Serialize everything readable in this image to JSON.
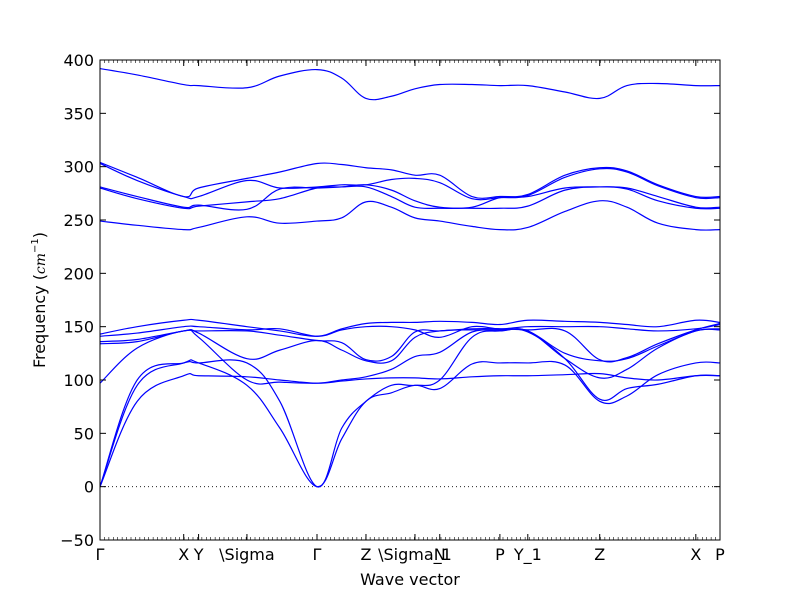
{
  "chart_data": {
    "type": "line",
    "title": "",
    "xlabel": "Wave vector",
    "ylabel": "Frequency ($cm^{-1}$)",
    "ylim": [
      -50,
      400
    ],
    "yticks": [
      -50,
      0,
      50,
      100,
      150,
      200,
      250,
      300,
      350,
      400
    ],
    "xlim": [
      0,
      1
    ],
    "xticks": [
      {
        "label": "Γ",
        "x": 0.0
      },
      {
        "label": "X",
        "x": 0.135
      },
      {
        "label": "Y",
        "x": 0.159
      },
      {
        "label": "\\Sigma",
        "x": 0.237
      },
      {
        "label": "Γ",
        "x": 0.35
      },
      {
        "label": "Z",
        "x": 0.429
      },
      {
        "label": "\\Sigma_1",
        "x": 0.508
      },
      {
        "label": "N",
        "x": 0.548
      },
      {
        "label": "P",
        "x": 0.645
      },
      {
        "label": "Y_1",
        "x": 0.69
      },
      {
        "label": "Z",
        "x": 0.806
      },
      {
        "label": "X",
        "x": 0.961
      },
      {
        "label": "P",
        "x": 1.0
      }
    ],
    "zero_line": {
      "y": 0,
      "style": "dotted"
    },
    "line_color": "#0000ff",
    "series": [
      {
        "x": [
          0,
          0.06,
          0.135,
          0.159,
          0.237,
          0.29,
          0.35,
          0.39,
          0.429,
          0.47,
          0.508,
          0.548,
          0.6,
          0.645,
          0.69,
          0.75,
          0.806,
          0.85,
          0.9,
          0.961,
          1.0
        ],
        "values": [
          0,
          80,
          104,
          104,
          103,
          100,
          97,
          99,
          101,
          102,
          102,
          101,
          103,
          104,
          104,
          105,
          106,
          102,
          100,
          104,
          104
        ]
      },
      {
        "x": [
          0,
          0.06,
          0.135,
          0.159,
          0.237,
          0.29,
          0.35,
          0.39,
          0.429,
          0.47,
          0.508,
          0.548,
          0.6,
          0.645,
          0.69,
          0.75,
          0.806,
          0.85,
          0.9,
          0.961,
          1.0
        ],
        "values": [
          0,
          95,
          116,
          116,
          95,
          55,
          0,
          45,
          80,
          88,
          95,
          92,
          115,
          116,
          116,
          114,
          80,
          85,
          105,
          116,
          116
        ]
      },
      {
        "x": [
          0,
          0.06,
          0.135,
          0.159,
          0.237,
          0.29,
          0.35,
          0.39,
          0.429,
          0.47,
          0.508,
          0.548,
          0.6,
          0.645,
          0.69,
          0.75,
          0.806,
          0.85,
          0.9,
          0.961,
          1.0
        ],
        "values": [
          0,
          100,
          116,
          116,
          116,
          80,
          0,
          55,
          80,
          95,
          95,
          100,
          140,
          146,
          145,
          120,
          82,
          92,
          96,
          104,
          104
        ]
      },
      {
        "x": [
          0,
          0.06,
          0.135,
          0.159,
          0.237,
          0.29,
          0.35,
          0.39,
          0.429,
          0.47,
          0.508,
          0.548,
          0.6,
          0.645,
          0.69,
          0.75,
          0.806,
          0.85,
          0.9,
          0.961,
          1.0
        ],
        "values": [
          97,
          130,
          146,
          140,
          100,
          98,
          97,
          100,
          103,
          110,
          122,
          126,
          145,
          146,
          146,
          120,
          102,
          110,
          130,
          146,
          147
        ]
      },
      {
        "x": [
          0,
          0.06,
          0.135,
          0.159,
          0.237,
          0.29,
          0.35,
          0.39,
          0.429,
          0.47,
          0.508,
          0.548,
          0.6,
          0.645,
          0.69,
          0.75,
          0.806,
          0.85,
          0.9,
          0.961,
          1.0
        ],
        "values": [
          134,
          136,
          146,
          144,
          120,
          128,
          137,
          128,
          118,
          118,
          140,
          146,
          147,
          147,
          146,
          125,
          118,
          120,
          132,
          146,
          148
        ]
      },
      {
        "x": [
          0,
          0.06,
          0.135,
          0.159,
          0.237,
          0.29,
          0.35,
          0.39,
          0.429,
          0.47,
          0.508,
          0.548,
          0.6,
          0.645,
          0.69,
          0.75,
          0.806,
          0.85,
          0.9,
          0.961,
          1.0
        ],
        "values": [
          136,
          138,
          146,
          146,
          146,
          142,
          137,
          135,
          119,
          122,
          145,
          146,
          148,
          148,
          147,
          146,
          119,
          121,
          134,
          147,
          153
        ]
      },
      {
        "x": [
          0,
          0.06,
          0.135,
          0.159,
          0.237,
          0.29,
          0.35,
          0.39,
          0.429,
          0.47,
          0.508,
          0.548,
          0.6,
          0.645,
          0.69,
          0.75,
          0.806,
          0.85,
          0.9,
          0.961,
          1.0
        ],
        "values": [
          141,
          144,
          150,
          150,
          147,
          148,
          141,
          147,
          150,
          150,
          147,
          140,
          150,
          148,
          150,
          150,
          150,
          148,
          146,
          148,
          152
        ]
      },
      {
        "x": [
          0,
          0.06,
          0.135,
          0.159,
          0.237,
          0.29,
          0.35,
          0.39,
          0.429,
          0.47,
          0.508,
          0.548,
          0.6,
          0.645,
          0.69,
          0.75,
          0.806,
          0.85,
          0.9,
          0.961,
          1.0
        ],
        "values": [
          143,
          150,
          156,
          156,
          150,
          146,
          141,
          148,
          153,
          154,
          154,
          155,
          154,
          152,
          156,
          155,
          154,
          152,
          150,
          156,
          154
        ]
      },
      {
        "x": [
          0,
          0.06,
          0.135,
          0.159,
          0.237,
          0.29,
          0.35,
          0.39,
          0.429,
          0.47,
          0.508,
          0.548,
          0.6,
          0.645,
          0.69,
          0.75,
          0.806,
          0.85,
          0.9,
          0.961,
          1.0
        ],
        "values": [
          249,
          245,
          241,
          243,
          253,
          247,
          249,
          252,
          267,
          262,
          252,
          249,
          244,
          241,
          243,
          258,
          268,
          262,
          247,
          241,
          241
        ]
      },
      {
        "x": [
          0,
          0.06,
          0.135,
          0.159,
          0.237,
          0.29,
          0.35,
          0.39,
          0.429,
          0.47,
          0.508,
          0.548,
          0.6,
          0.645,
          0.69,
          0.75,
          0.806,
          0.85,
          0.9,
          0.961,
          1.0
        ],
        "values": [
          280,
          270,
          261,
          263,
          267,
          270,
          280,
          281,
          281,
          272,
          262,
          261,
          261,
          261,
          263,
          278,
          281,
          279,
          268,
          261,
          261
        ]
      },
      {
        "x": [
          0,
          0.06,
          0.135,
          0.159,
          0.237,
          0.29,
          0.35,
          0.39,
          0.429,
          0.47,
          0.508,
          0.548,
          0.6,
          0.645,
          0.69,
          0.75,
          0.806,
          0.85,
          0.9,
          0.961,
          1.0
        ],
        "values": [
          281,
          272,
          262,
          264,
          260,
          279,
          280,
          281,
          283,
          278,
          268,
          262,
          262,
          271,
          272,
          280,
          281,
          280,
          272,
          262,
          262
        ]
      },
      {
        "x": [
          0,
          0.06,
          0.135,
          0.159,
          0.237,
          0.29,
          0.35,
          0.39,
          0.429,
          0.47,
          0.508,
          0.548,
          0.6,
          0.645,
          0.69,
          0.75,
          0.806,
          0.85,
          0.9,
          0.961,
          1.0
        ],
        "values": [
          303,
          287,
          272,
          272,
          287,
          280,
          281,
          283,
          283,
          288,
          289,
          285,
          270,
          271,
          273,
          290,
          298,
          295,
          282,
          271,
          271
        ]
      },
      {
        "x": [
          0,
          0.06,
          0.135,
          0.159,
          0.237,
          0.29,
          0.35,
          0.39,
          0.429,
          0.47,
          0.508,
          0.548,
          0.6,
          0.645,
          0.69,
          0.75,
          0.806,
          0.85,
          0.9,
          0.961,
          1.0
        ],
        "values": [
          304,
          290,
          272,
          280,
          289,
          295,
          303,
          302,
          299,
          297,
          292,
          292,
          272,
          272,
          274,
          292,
          299,
          296,
          283,
          272,
          272
        ]
      },
      {
        "x": [
          0,
          0.06,
          0.135,
          0.159,
          0.237,
          0.29,
          0.35,
          0.39,
          0.429,
          0.47,
          0.508,
          0.548,
          0.6,
          0.645,
          0.69,
          0.75,
          0.806,
          0.85,
          0.9,
          0.961,
          1.0
        ],
        "values": [
          392,
          386,
          377,
          376,
          374,
          385,
          391,
          383,
          364,
          366,
          373,
          377,
          377,
          376,
          376,
          370,
          364,
          376,
          378,
          376,
          376
        ]
      }
    ]
  }
}
